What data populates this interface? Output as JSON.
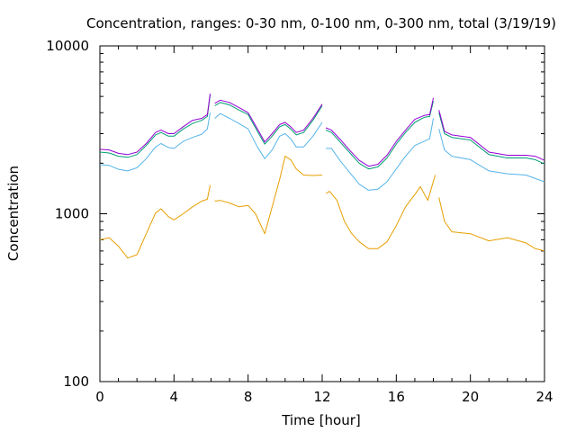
{
  "chart_data": {
    "type": "line",
    "title": "Concentration, ranges: 0-30 nm, 0-100 nm, 0-300 nm, total (3/19/19)",
    "xlabel": "Time [hour]",
    "ylabel": "Concentration",
    "xlim": [
      0,
      24
    ],
    "ylim": [
      100,
      10000
    ],
    "yscale": "log",
    "grid": false,
    "xticks": [
      0,
      4,
      8,
      12,
      16,
      20,
      24
    ],
    "xtick_labels": [
      "0",
      "4",
      "8",
      "12",
      "16",
      "20",
      "24"
    ],
    "yticks": [
      100,
      1000,
      10000
    ],
    "ytick_labels": [
      "100",
      "1000",
      "10000"
    ],
    "series": [
      {
        "color": "#e69f00",
        "segments": [
          [
            [
              0,
              700
            ],
            [
              0.5,
              720
            ],
            [
              1,
              640
            ],
            [
              1.5,
              545
            ],
            [
              2,
              570
            ],
            [
              2.5,
              760
            ],
            [
              3,
              1010
            ],
            [
              3.3,
              1070
            ],
            [
              3.7,
              960
            ],
            [
              4,
              920
            ],
            [
              4.5,
              1000
            ],
            [
              5,
              1100
            ],
            [
              5.5,
              1190
            ],
            [
              5.8,
              1220
            ],
            [
              5.95,
              1480
            ]
          ],
          [
            [
              6.2,
              1190
            ],
            [
              6.5,
              1200
            ],
            [
              7,
              1160
            ],
            [
              7.5,
              1100
            ],
            [
              8,
              1120
            ],
            [
              8.4,
              1000
            ],
            [
              8.9,
              760
            ],
            [
              9.3,
              1100
            ],
            [
              9.7,
              1600
            ],
            [
              10,
              2200
            ],
            [
              10.3,
              2100
            ],
            [
              10.6,
              1850
            ],
            [
              11,
              1700
            ],
            [
              11.5,
              1690
            ],
            [
              12,
              1700
            ]
          ],
          [
            [
              12.2,
              1320
            ],
            [
              12.4,
              1360
            ],
            [
              12.8,
              1200
            ],
            [
              13.2,
              900
            ],
            [
              13.6,
              760
            ],
            [
              14,
              680
            ],
            [
              14.5,
              620
            ],
            [
              15,
              620
            ],
            [
              15.5,
              680
            ],
            [
              16,
              850
            ],
            [
              16.5,
              1100
            ],
            [
              17,
              1300
            ],
            [
              17.3,
              1450
            ],
            [
              17.7,
              1200
            ],
            [
              18.1,
              1700
            ]
          ],
          [
            [
              18.3,
              1250
            ],
            [
              18.6,
              900
            ],
            [
              19,
              780
            ],
            [
              20,
              760
            ],
            [
              21,
              690
            ],
            [
              22,
              720
            ],
            [
              23,
              670
            ],
            [
              23.5,
              620
            ],
            [
              24,
              600
            ]
          ]
        ]
      },
      {
        "color": "#56b4e9",
        "segments": [
          [
            [
              0,
              1960
            ],
            [
              0.5,
              1940
            ],
            [
              1,
              1840
            ],
            [
              1.5,
              1800
            ],
            [
              2,
              1880
            ],
            [
              2.5,
              2130
            ],
            [
              3,
              2500
            ],
            [
              3.3,
              2620
            ],
            [
              3.7,
              2480
            ],
            [
              4,
              2450
            ],
            [
              4.5,
              2700
            ],
            [
              5,
              2850
            ],
            [
              5.5,
              2980
            ],
            [
              5.8,
              3200
            ],
            [
              5.95,
              4000
            ]
          ],
          [
            [
              6.2,
              3700
            ],
            [
              6.5,
              3950
            ],
            [
              7,
              3700
            ],
            [
              7.5,
              3450
            ],
            [
              8,
              3200
            ],
            [
              8.5,
              2500
            ],
            [
              8.9,
              2130
            ],
            [
              9.3,
              2400
            ],
            [
              9.7,
              2900
            ],
            [
              10,
              3000
            ],
            [
              10.3,
              2800
            ],
            [
              10.6,
              2500
            ],
            [
              11,
              2500
            ],
            [
              11.5,
              2900
            ],
            [
              12,
              3500
            ]
          ],
          [
            [
              12.2,
              2450
            ],
            [
              12.5,
              2450
            ],
            [
              13,
              2050
            ],
            [
              13.5,
              1750
            ],
            [
              14,
              1500
            ],
            [
              14.5,
              1380
            ],
            [
              15,
              1400
            ],
            [
              15.5,
              1550
            ],
            [
              16,
              1850
            ],
            [
              16.5,
              2200
            ],
            [
              17,
              2550
            ],
            [
              17.5,
              2700
            ],
            [
              17.8,
              2800
            ],
            [
              18,
              3700
            ]
          ],
          [
            [
              18.3,
              3200
            ],
            [
              18.6,
              2400
            ],
            [
              19,
              2200
            ],
            [
              20,
              2100
            ],
            [
              21,
              1800
            ],
            [
              22,
              1730
            ],
            [
              23,
              1700
            ],
            [
              23.5,
              1620
            ],
            [
              24,
              1550
            ]
          ]
        ]
      },
      {
        "color": "#009e73",
        "segments": [
          [
            [
              0,
              2330
            ],
            [
              0.5,
              2300
            ],
            [
              1,
              2200
            ],
            [
              1.5,
              2170
            ],
            [
              2,
              2250
            ],
            [
              2.5,
              2550
            ],
            [
              3,
              2950
            ],
            [
              3.3,
              3050
            ],
            [
              3.7,
              2900
            ],
            [
              4,
              2900
            ],
            [
              4.5,
              3200
            ],
            [
              5,
              3450
            ],
            [
              5.5,
              3600
            ],
            [
              5.8,
              3800
            ],
            [
              5.95,
              5100
            ]
          ],
          [
            [
              6.2,
              4400
            ],
            [
              6.5,
              4600
            ],
            [
              7,
              4450
            ],
            [
              7.5,
              4150
            ],
            [
              8,
              3900
            ],
            [
              8.5,
              3100
            ],
            [
              8.9,
              2600
            ],
            [
              9.3,
              2900
            ],
            [
              9.7,
              3300
            ],
            [
              10,
              3400
            ],
            [
              10.3,
              3200
            ],
            [
              10.6,
              2950
            ],
            [
              11,
              3050
            ],
            [
              11.5,
              3600
            ],
            [
              12,
              4400
            ]
          ],
          [
            [
              12.2,
              3150
            ],
            [
              12.5,
              3050
            ],
            [
              13,
              2650
            ],
            [
              13.5,
              2300
            ],
            [
              14,
              2000
            ],
            [
              14.5,
              1850
            ],
            [
              15,
              1900
            ],
            [
              15.5,
              2150
            ],
            [
              16,
              2600
            ],
            [
              16.5,
              3050
            ],
            [
              17,
              3500
            ],
            [
              17.5,
              3750
            ],
            [
              17.8,
              3800
            ],
            [
              18,
              4700
            ]
          ],
          [
            [
              18.3,
              4000
            ],
            [
              18.6,
              3000
            ],
            [
              19,
              2850
            ],
            [
              20,
              2750
            ],
            [
              21,
              2250
            ],
            [
              22,
              2150
            ],
            [
              23,
              2150
            ],
            [
              23.5,
              2100
            ],
            [
              24,
              1980
            ]
          ]
        ]
      },
      {
        "color": "#9400d3",
        "segments": [
          [
            [
              0,
              2420
            ],
            [
              0.5,
              2400
            ],
            [
              1,
              2290
            ],
            [
              1.5,
              2250
            ],
            [
              2,
              2330
            ],
            [
              2.5,
              2620
            ],
            [
              3,
              3050
            ],
            [
              3.3,
              3150
            ],
            [
              3.7,
              3000
            ],
            [
              4,
              3000
            ],
            [
              4.5,
              3300
            ],
            [
              5,
              3600
            ],
            [
              5.5,
              3700
            ],
            [
              5.8,
              3900
            ],
            [
              5.95,
              5200
            ]
          ],
          [
            [
              6.2,
              4550
            ],
            [
              6.5,
              4750
            ],
            [
              7,
              4600
            ],
            [
              7.5,
              4300
            ],
            [
              8,
              4000
            ],
            [
              8.5,
              3200
            ],
            [
              8.9,
              2680
            ],
            [
              9.3,
              3000
            ],
            [
              9.7,
              3400
            ],
            [
              10,
              3500
            ],
            [
              10.3,
              3300
            ],
            [
              10.6,
              3050
            ],
            [
              11,
              3150
            ],
            [
              11.5,
              3700
            ],
            [
              12,
              4500
            ]
          ],
          [
            [
              12.2,
              3250
            ],
            [
              12.5,
              3150
            ],
            [
              13,
              2750
            ],
            [
              13.5,
              2380
            ],
            [
              14,
              2080
            ],
            [
              14.5,
              1920
            ],
            [
              15,
              1970
            ],
            [
              15.5,
              2230
            ],
            [
              16,
              2700
            ],
            [
              16.5,
              3150
            ],
            [
              17,
              3650
            ],
            [
              17.5,
              3850
            ],
            [
              17.8,
              3900
            ],
            [
              18,
              4900
            ]
          ],
          [
            [
              18.3,
              4150
            ],
            [
              18.6,
              3100
            ],
            [
              19,
              2950
            ],
            [
              20,
              2850
            ],
            [
              21,
              2330
            ],
            [
              22,
              2230
            ],
            [
              23,
              2230
            ],
            [
              23.5,
              2200
            ],
            [
              24,
              2080
            ]
          ]
        ]
      }
    ]
  }
}
